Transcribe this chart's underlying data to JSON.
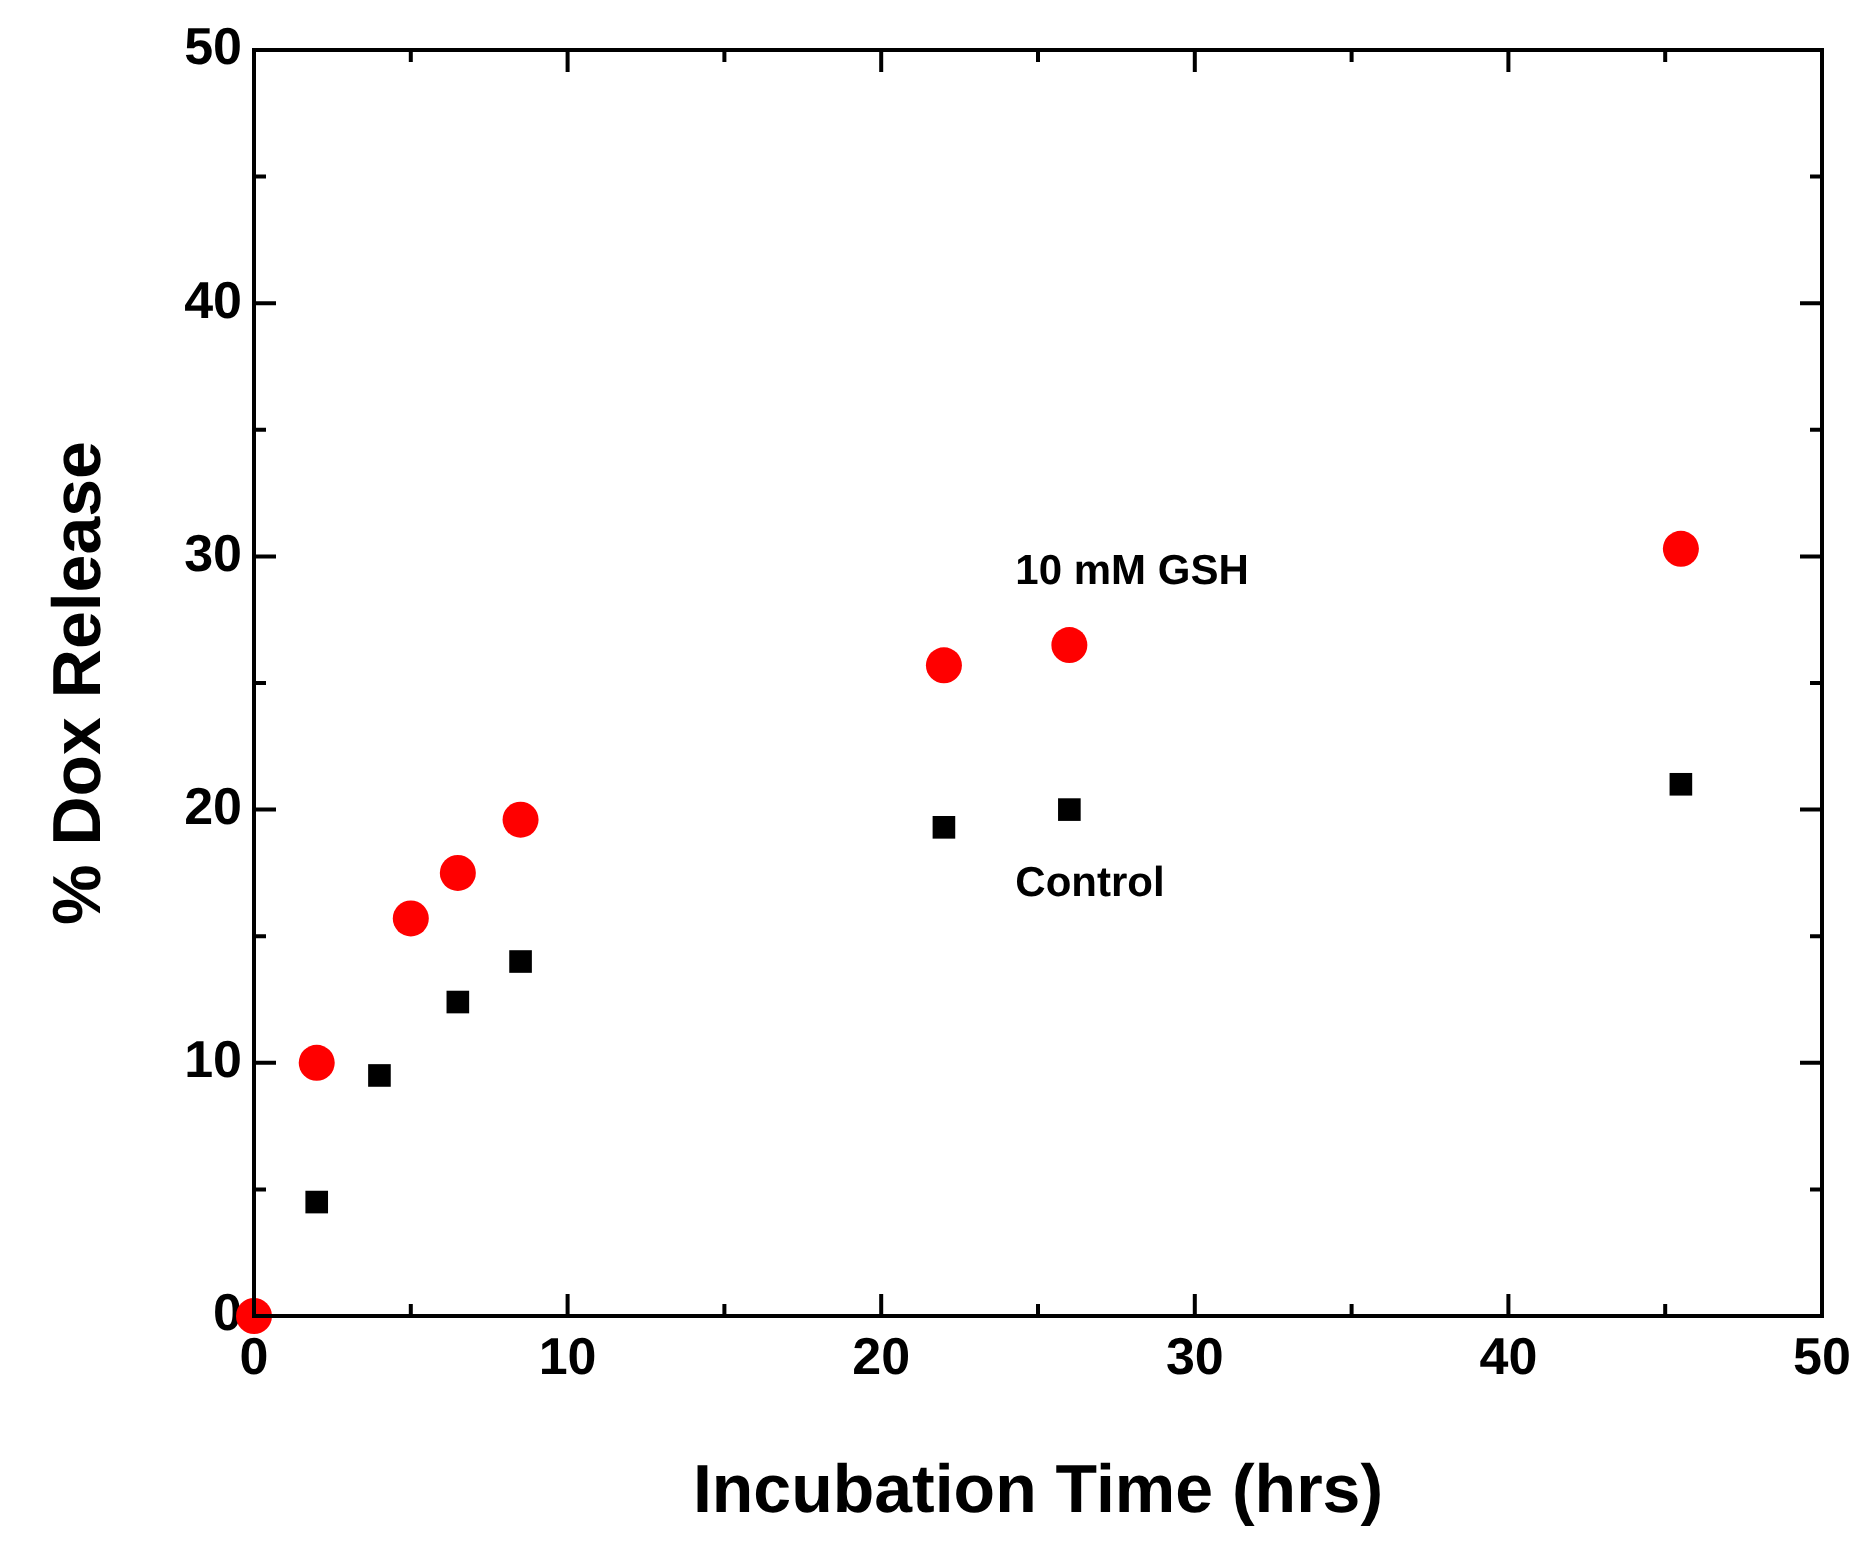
{
  "chart_data": {
    "type": "scatter",
    "xlabel": "Incubation Time (hrs)",
    "ylabel": "% Dox Release",
    "series": [
      {
        "name": "10 mM GSH",
        "color": "#ff0000",
        "marker": "circle",
        "x": [
          0,
          2,
          5,
          6.5,
          8.5,
          22,
          26,
          45.5
        ],
        "values": [
          0,
          10,
          15.7,
          17.5,
          19.6,
          25.7,
          26.5,
          30.3
        ]
      },
      {
        "name": "Control",
        "color": "#000000",
        "marker": "square",
        "x": [
          2,
          4,
          6.5,
          8.5,
          22,
          26,
          45.5
        ],
        "values": [
          4.5,
          9.5,
          12.4,
          14,
          19.3,
          20,
          21
        ]
      }
    ],
    "xlim": [
      0,
      50
    ],
    "ylim": [
      0,
      50
    ],
    "xticks": [
      0,
      {
        "value": 5,
        "label": null
      },
      10,
      {
        "value": 15,
        "label": null
      },
      20,
      {
        "value": 25,
        "label": null
      },
      30,
      {
        "value": 35,
        "label": null
      },
      40,
      {
        "value": 45,
        "label": null
      },
      50
    ],
    "yticks": [
      0,
      {
        "value": 5,
        "label": null
      },
      10,
      {
        "value": 15,
        "label": null
      },
      20,
      {
        "value": 25,
        "label": null
      },
      30,
      {
        "value": 35,
        "label": null
      },
      40,
      {
        "value": 45,
        "label": null
      },
      50
    ],
    "grid": false,
    "legend": false
  }
}
